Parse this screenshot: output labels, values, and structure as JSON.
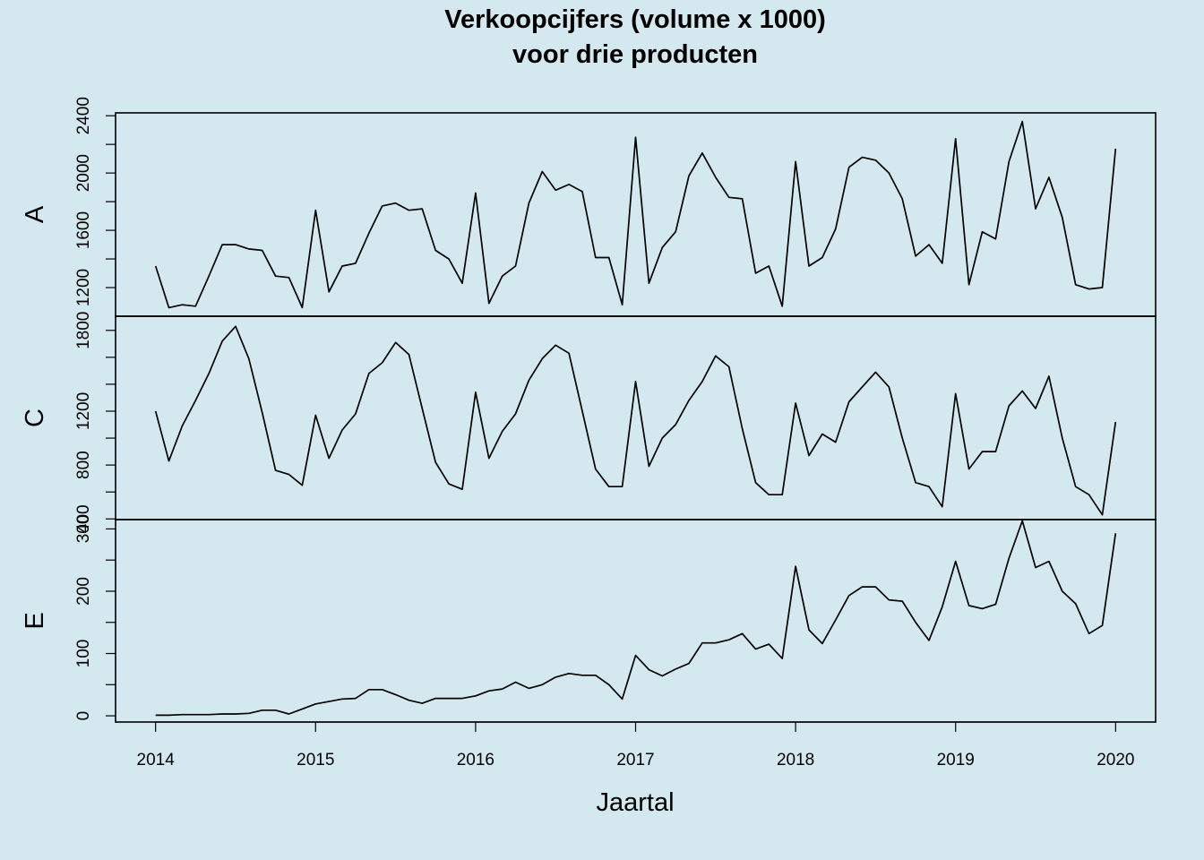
{
  "chart_data": {
    "type": "line",
    "title": "Verkoopcijfers (volume x 1000)",
    "subtitle": "voor drie producten",
    "xlabel": "Jaartal",
    "x_start": "2014-01",
    "x_frequency": "monthly",
    "xlim": [
      2013.75,
      2020.25
    ],
    "x_ticks": [
      "2014",
      "2015",
      "2016",
      "2017",
      "2018",
      "2019",
      "2020"
    ],
    "grid": false,
    "legend": "none",
    "panels": [
      {
        "name": "A",
        "ylim": [
          1000,
          2420
        ],
        "y_ticks": [
          1200,
          1400,
          1600,
          1800,
          2000,
          2200,
          2400
        ],
        "y_tick_labels": [
          "1200",
          "",
          "1600",
          "",
          "2000",
          "",
          "2400"
        ],
        "values": [
          1350,
          1060,
          1080,
          1070,
          1280,
          1500,
          1500,
          1470,
          1460,
          1280,
          1270,
          1060,
          1740,
          1170,
          1350,
          1370,
          1580,
          1770,
          1790,
          1740,
          1750,
          1460,
          1400,
          1230,
          1860,
          1090,
          1280,
          1350,
          1790,
          2010,
          1880,
          1920,
          1870,
          1410,
          1410,
          1080,
          2250,
          1230,
          1480,
          1590,
          1980,
          2140,
          1970,
          1830,
          1820,
          1300,
          1350,
          1070,
          2080,
          1350,
          1410,
          1610,
          2040,
          2110,
          2090,
          2000,
          1820,
          1420,
          1500,
          1370,
          2240,
          1220,
          1590,
          1540,
          2080,
          2360,
          1750,
          1970,
          1690,
          1220,
          1190,
          1200,
          2170
        ]
      },
      {
        "name": "C",
        "ylim": [
          395,
          1905
        ],
        "y_ticks": [
          400,
          600,
          800,
          1000,
          1200,
          1400,
          1600,
          1800
        ],
        "y_tick_labels": [
          "400",
          "",
          "800",
          "",
          "1200",
          "",
          "",
          "1800"
        ],
        "values": [
          1200,
          830,
          1090,
          1280,
          1480,
          1720,
          1830,
          1590,
          1190,
          760,
          730,
          650,
          1170,
          850,
          1060,
          1180,
          1480,
          1560,
          1710,
          1620,
          1220,
          820,
          660,
          620,
          1340,
          850,
          1050,
          1180,
          1430,
          1590,
          1690,
          1630,
          1200,
          770,
          640,
          640,
          1420,
          790,
          1000,
          1100,
          1280,
          1420,
          1610,
          1530,
          1070,
          670,
          580,
          580,
          1260,
          870,
          1030,
          970,
          1270,
          1380,
          1490,
          1380,
          1000,
          670,
          640,
          490,
          1330,
          770,
          900,
          900,
          1240,
          1350,
          1220,
          1460,
          1000,
          640,
          580,
          430,
          1120
        ]
      },
      {
        "name": "E",
        "ylim": [
          -10,
          315
        ],
        "y_ticks": [
          0,
          50,
          100,
          150,
          200,
          250,
          300
        ],
        "y_tick_labels": [
          "0",
          "",
          "100",
          "",
          "200",
          "",
          "300"
        ],
        "values": [
          1,
          1,
          2,
          2,
          2,
          3,
          3,
          4,
          9,
          9,
          3,
          11,
          19,
          23,
          27,
          28,
          42,
          42,
          34,
          25,
          20,
          28,
          28,
          28,
          32,
          40,
          43,
          54,
          44,
          50,
          62,
          68,
          65,
          65,
          50,
          27,
          97,
          74,
          64,
          75,
          84,
          117,
          117,
          122,
          132,
          107,
          115,
          92,
          240,
          138,
          116,
          154,
          193,
          207,
          207,
          186,
          184,
          150,
          121,
          175,
          248,
          177,
          172,
          179,
          253,
          313,
          238,
          248,
          200,
          180,
          132,
          145,
          293
        ]
      }
    ]
  }
}
